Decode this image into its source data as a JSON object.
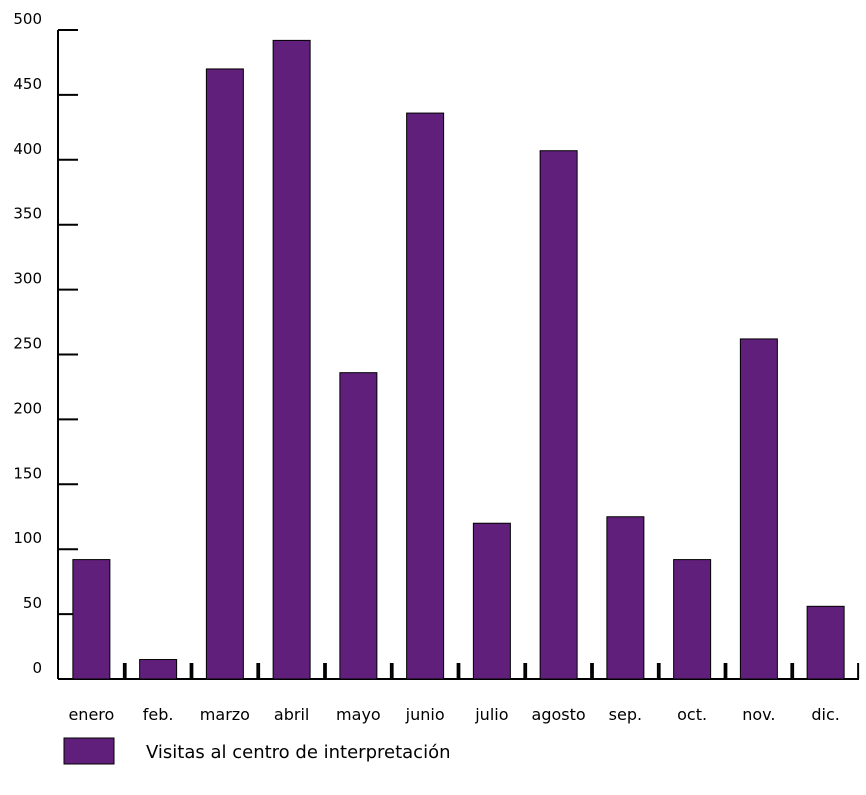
{
  "chart_data": {
    "type": "bar",
    "categories": [
      "enero",
      "feb.",
      "marzo",
      "abril",
      "mayo",
      "junio",
      "julio",
      "agosto",
      "sep.",
      "oct.",
      "nov.",
      "dic."
    ],
    "series": [
      {
        "name": "Visitas al centro de interpretación",
        "values": [
          92,
          15,
          470,
          492,
          236,
          436,
          120,
          407,
          125,
          92,
          262,
          56
        ],
        "color": "#5f1f7a"
      }
    ],
    "ylim": [
      0,
      500
    ],
    "yticks": [
      0,
      50,
      100,
      150,
      200,
      250,
      300,
      350,
      400,
      450,
      500
    ],
    "grid": false,
    "legend_position": "bottom-left",
    "title": "",
    "xlabel": "",
    "ylabel": ""
  }
}
